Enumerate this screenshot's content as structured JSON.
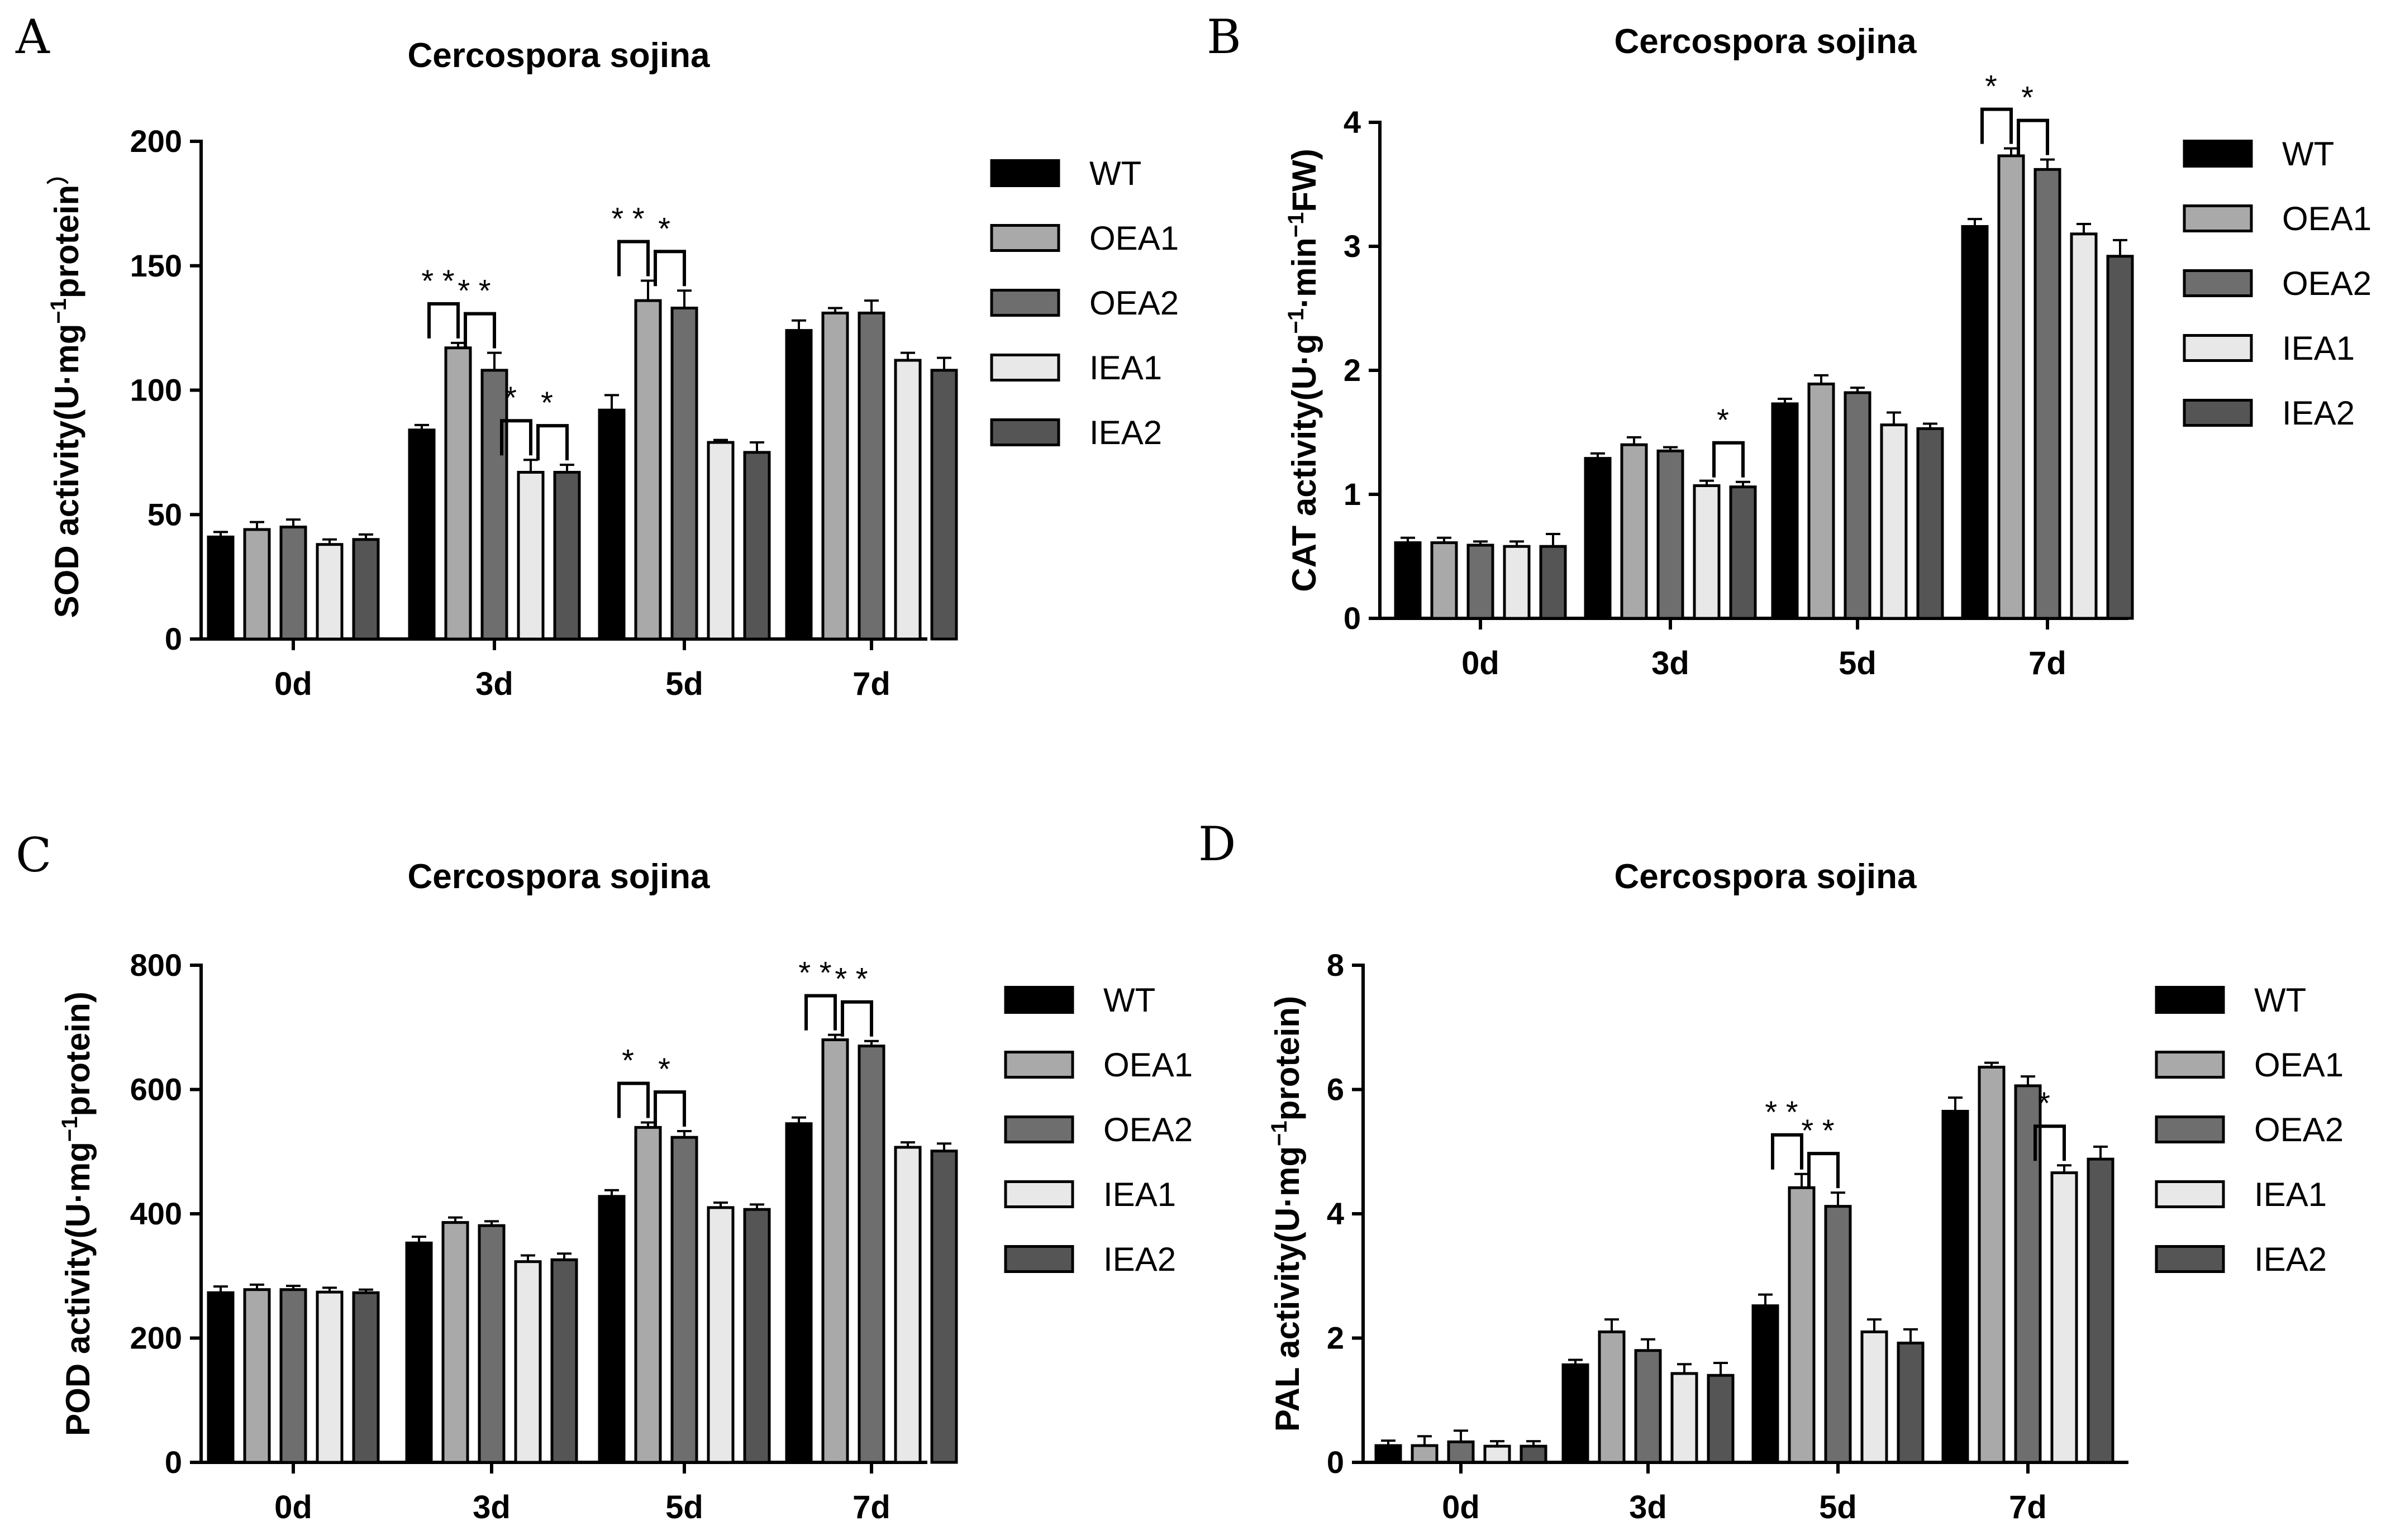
{
  "figure": {
    "series_names": [
      "WT",
      "OEA1",
      "OEA2",
      "IEA1",
      "IEA2"
    ],
    "series_colors": [
      "#000000",
      "#a9a9a9",
      "#6e6e6e",
      "#e8e8e8",
      "#555555"
    ]
  },
  "chart_data": [
    {
      "panel": "A",
      "type": "bar",
      "title": "Cercospora sojina",
      "ylabel_parts": [
        "SOD activity(U·mg",
        "−1",
        "protein",
        "）"
      ],
      "categories": [
        "0d",
        "3d",
        "5d",
        "7d"
      ],
      "ylim": [
        0,
        200
      ],
      "yticks": [
        0,
        50,
        100,
        150,
        200
      ],
      "series": [
        {
          "name": "WT",
          "values": [
            41,
            84,
            92,
            124
          ],
          "errors": [
            2,
            2,
            6,
            4
          ]
        },
        {
          "name": "OEA1",
          "values": [
            44,
            117,
            136,
            131
          ],
          "errors": [
            3,
            2,
            8,
            2
          ]
        },
        {
          "name": "OEA2",
          "values": [
            45,
            108,
            133,
            131
          ],
          "errors": [
            3,
            7,
            7,
            5
          ]
        },
        {
          "name": "IEA1",
          "values": [
            38,
            67,
            79,
            112
          ],
          "errors": [
            2,
            5,
            1,
            3
          ]
        },
        {
          "name": "IEA2",
          "values": [
            40,
            67,
            75,
            108
          ],
          "errors": [
            2,
            3,
            4,
            5
          ]
        }
      ],
      "significance": [
        {
          "group": 1,
          "from": 0,
          "to": 1,
          "label": "* *"
        },
        {
          "group": 1,
          "from": 0,
          "to": 2,
          "label": "* *"
        },
        {
          "group": 1,
          "from": 0,
          "to": 3,
          "label": "*"
        },
        {
          "group": 1,
          "from": 0,
          "to": 4,
          "label": "*"
        },
        {
          "group": 2,
          "from": 0,
          "to": 1,
          "label": "* *"
        },
        {
          "group": 2,
          "from": 0,
          "to": 2,
          "label": "*"
        }
      ]
    },
    {
      "panel": "B",
      "type": "bar",
      "title": "Cercospora sojina",
      "ylabel_parts": [
        "CAT activity(U·g",
        "−1",
        "·min",
        "−1",
        "FW)"
      ],
      "categories": [
        "0d",
        "3d",
        "5d",
        "7d"
      ],
      "ylim": [
        0,
        4
      ],
      "yticks": [
        0,
        1,
        2,
        3,
        4
      ],
      "series": [
        {
          "name": "WT",
          "values": [
            0.61,
            1.29,
            1.73,
            3.16
          ],
          "errors": [
            0.04,
            0.04,
            0.04,
            0.06
          ]
        },
        {
          "name": "OEA1",
          "values": [
            0.61,
            1.4,
            1.89,
            3.73
          ],
          "errors": [
            0.04,
            0.06,
            0.07,
            0.06
          ]
        },
        {
          "name": "OEA2",
          "values": [
            0.59,
            1.35,
            1.82,
            3.62
          ],
          "errors": [
            0.03,
            0.03,
            0.04,
            0.08
          ]
        },
        {
          "name": "IEA1",
          "values": [
            0.58,
            1.07,
            1.56,
            3.1
          ],
          "errors": [
            0.04,
            0.04,
            0.1,
            0.08
          ]
        },
        {
          "name": "IEA2",
          "values": [
            0.58,
            1.06,
            1.53,
            2.92
          ],
          "errors": [
            0.1,
            0.04,
            0.04,
            0.13
          ]
        }
      ],
      "significance": [
        {
          "group": 1,
          "from": 0,
          "to": 4,
          "label": "*"
        },
        {
          "group": 3,
          "from": 0,
          "to": 1,
          "label": "*"
        },
        {
          "group": 3,
          "from": 0,
          "to": 2,
          "label": "*"
        }
      ]
    },
    {
      "panel": "C",
      "type": "bar",
      "title": "Cercospora sojina",
      "ylabel_parts": [
        "POD activity(U·mg",
        "−1",
        "protein)"
      ],
      "categories": [
        "0d",
        "3d",
        "5d",
        "7d"
      ],
      "ylim": [
        0,
        800
      ],
      "yticks": [
        0,
        200,
        400,
        600,
        800
      ],
      "series": [
        {
          "name": "WT",
          "values": [
            273,
            353,
            428,
            545
          ],
          "errors": [
            10,
            10,
            10,
            10
          ]
        },
        {
          "name": "OEA1",
          "values": [
            278,
            386,
            539,
            680
          ],
          "errors": [
            8,
            8,
            8,
            8
          ]
        },
        {
          "name": "OEA2",
          "values": [
            278,
            381,
            523,
            670
          ],
          "errors": [
            6,
            7,
            10,
            8
          ]
        },
        {
          "name": "IEA1",
          "values": [
            274,
            323,
            410,
            507
          ],
          "errors": [
            7,
            10,
            8,
            8
          ]
        },
        {
          "name": "IEA2",
          "values": [
            273,
            326,
            407,
            501
          ],
          "errors": [
            5,
            10,
            8,
            12
          ]
        }
      ],
      "significance": [
        {
          "group": 2,
          "from": 0,
          "to": 1,
          "label": "*"
        },
        {
          "group": 2,
          "from": 0,
          "to": 2,
          "label": "*"
        },
        {
          "group": 3,
          "from": 0,
          "to": 1,
          "label": "* *"
        },
        {
          "group": 3,
          "from": 0,
          "to": 2,
          "label": "* *"
        }
      ]
    },
    {
      "panel": "D",
      "type": "bar",
      "title": "Cercospora sojina",
      "ylabel_parts": [
        "PAL activity(U·mg",
        "−1",
        "protein)"
      ],
      "categories": [
        "0d",
        "3d",
        "5d",
        "7d"
      ],
      "ylim": [
        0,
        8
      ],
      "yticks": [
        0,
        2,
        4,
        6,
        8
      ],
      "series": [
        {
          "name": "WT",
          "values": [
            0.27,
            1.57,
            2.52,
            5.65
          ],
          "errors": [
            0.08,
            0.08,
            0.18,
            0.22
          ]
        },
        {
          "name": "OEA1",
          "values": [
            0.27,
            2.1,
            4.42,
            6.36
          ],
          "errors": [
            0.15,
            0.2,
            0.22,
            0.07
          ]
        },
        {
          "name": "OEA2",
          "values": [
            0.33,
            1.8,
            4.12,
            6.06
          ],
          "errors": [
            0.18,
            0.18,
            0.22,
            0.15
          ]
        },
        {
          "name": "IEA1",
          "values": [
            0.26,
            1.43,
            2.1,
            4.66
          ],
          "errors": [
            0.08,
            0.15,
            0.2,
            0.12
          ]
        },
        {
          "name": "IEA2",
          "values": [
            0.26,
            1.4,
            1.92,
            4.88
          ],
          "errors": [
            0.08,
            0.2,
            0.22,
            0.2
          ]
        }
      ],
      "significance": [
        {
          "group": 2,
          "from": 0,
          "to": 1,
          "label": "* *"
        },
        {
          "group": 2,
          "from": 0,
          "to": 2,
          "label": "* *"
        },
        {
          "group": 3,
          "from": 0,
          "to": 3,
          "label": "*"
        }
      ]
    }
  ]
}
